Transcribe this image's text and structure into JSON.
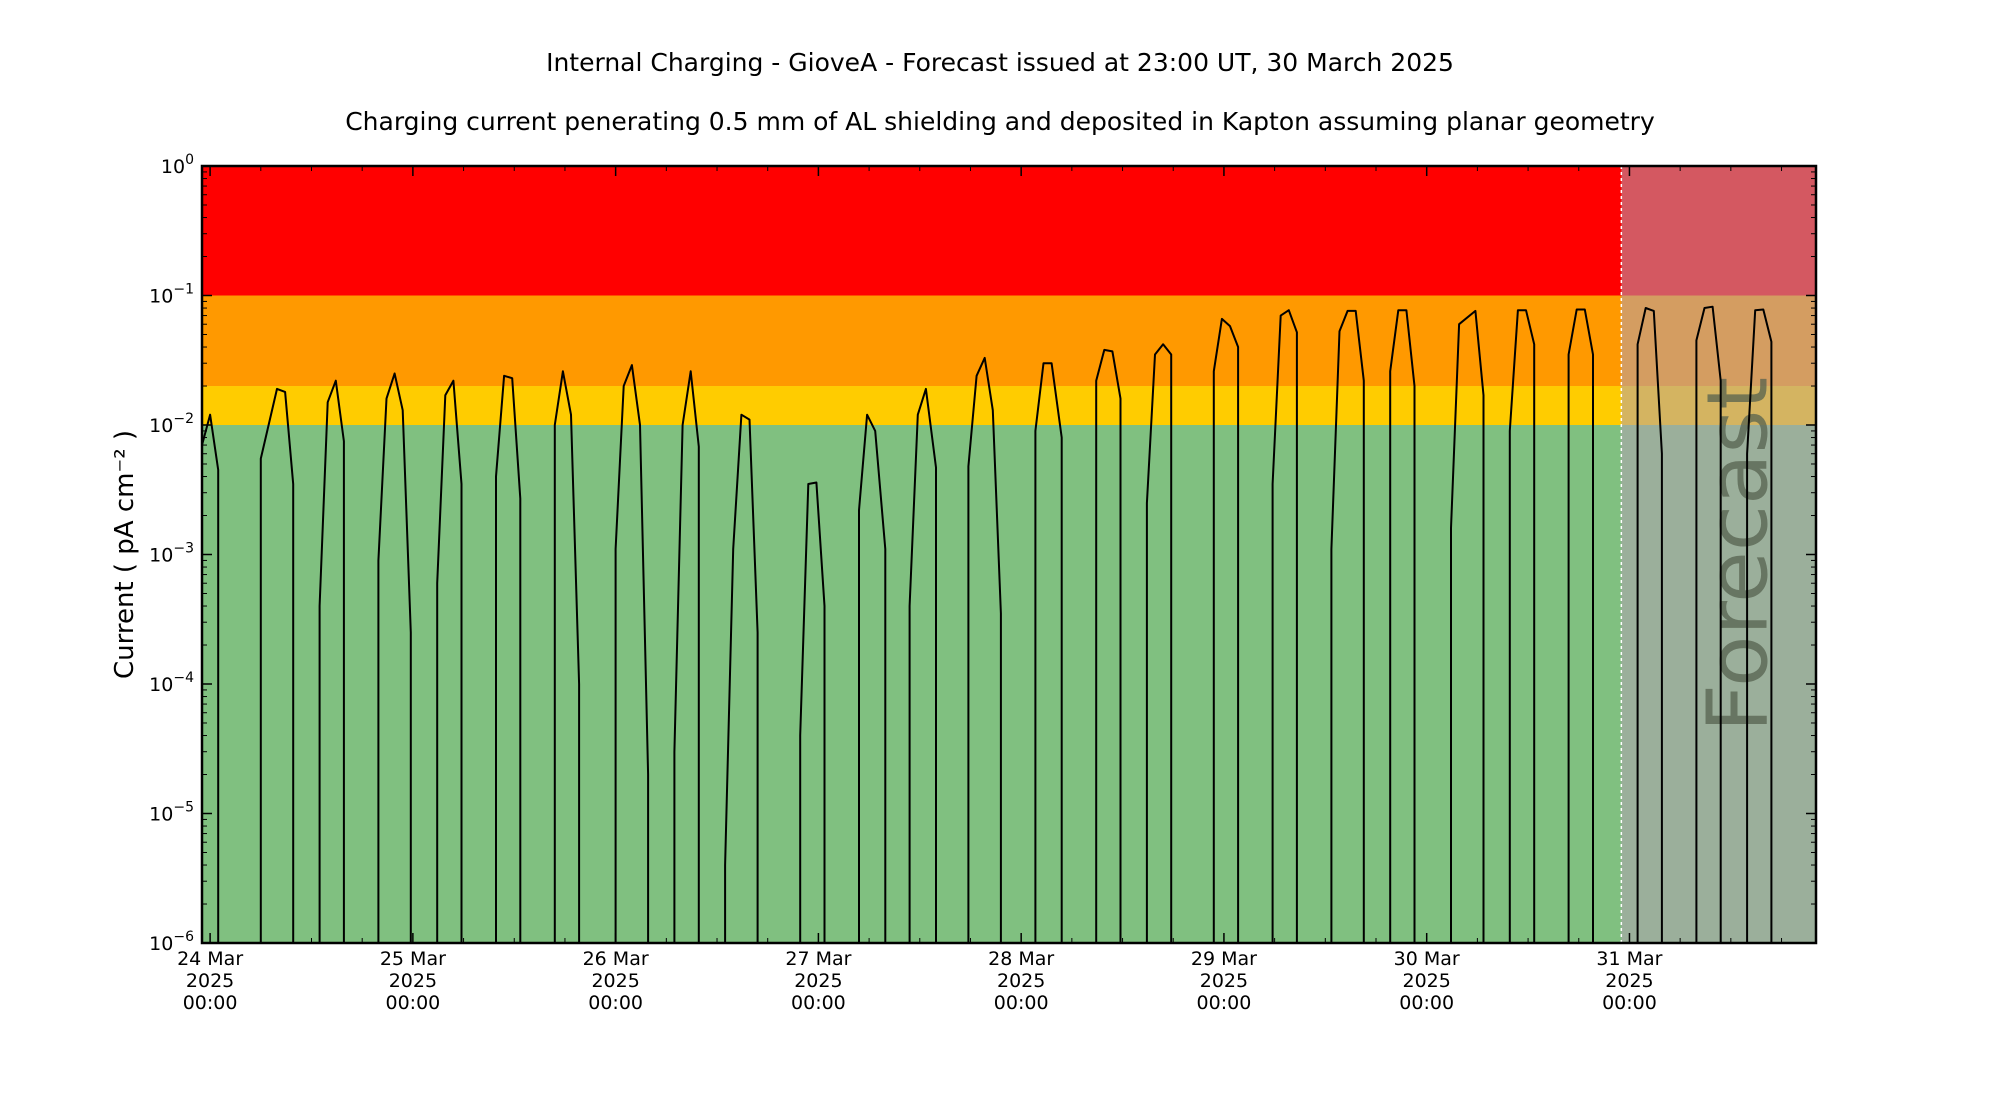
{
  "chart_data": {
    "type": "line",
    "title": "Internal Charging - GioveA - Forecast issued at 23:00 UT, 30 March 2025",
    "subtitle": "Charging current penerating 0.5 mm of AL shielding and deposited in Kapton assuming planar geometry",
    "ylabel": "Current ( pA cm⁻² )",
    "xlabel": "",
    "yscale": "log",
    "ylim": [
      1e-06,
      1
    ],
    "xlim_days": [
      -0.04,
      7.92
    ],
    "y_ticks": [
      {
        "value": 1e-06,
        "base": "10",
        "exp": "−6"
      },
      {
        "value": 1e-05,
        "base": "10",
        "exp": "−5"
      },
      {
        "value": 0.0001,
        "base": "10",
        "exp": "−4"
      },
      {
        "value": 0.001,
        "base": "10",
        "exp": "−3"
      },
      {
        "value": 0.01,
        "base": "10",
        "exp": "−2"
      },
      {
        "value": 0.1,
        "base": "10",
        "exp": "−1"
      },
      {
        "value": 1,
        "base": "10",
        "exp": "0"
      }
    ],
    "x_ticks": [
      {
        "day": 0,
        "lines": [
          "24 Mar",
          "2025",
          "00:00"
        ]
      },
      {
        "day": 1,
        "lines": [
          "25 Mar",
          "2025",
          "00:00"
        ]
      },
      {
        "day": 2,
        "lines": [
          "26 Mar",
          "2025",
          "00:00"
        ]
      },
      {
        "day": 3,
        "lines": [
          "27 Mar",
          "2025",
          "00:00"
        ]
      },
      {
        "day": 4,
        "lines": [
          "28 Mar",
          "2025",
          "00:00"
        ]
      },
      {
        "day": 5,
        "lines": [
          "29 Mar",
          "2025",
          "00:00"
        ]
      },
      {
        "day": 6,
        "lines": [
          "30 Mar",
          "2025",
          "00:00"
        ]
      },
      {
        "day": 7,
        "lines": [
          "31 Mar",
          "2025",
          "00:00"
        ]
      }
    ],
    "bands": [
      {
        "from": 1e-06,
        "to": 0.01,
        "color": "#80c080"
      },
      {
        "from": 0.01,
        "to": 0.02,
        "color": "#ffcc00"
      },
      {
        "from": 0.02,
        "to": 0.1,
        "color": "#ff9900"
      },
      {
        "from": 0.1,
        "to": 1,
        "color": "#ff0000"
      }
    ],
    "forecast": {
      "start_day": 6.96,
      "label": "Forecast",
      "overlay_color": "#b0a0b0"
    },
    "grid": false,
    "legend": "none",
    "series": [
      {
        "color": "#000000",
        "segments": [
          [
            [
              -0.04,
              0.007
            ],
            [
              0.0,
              0.012
            ],
            [
              0.04,
              0.0045
            ],
            [
              0.04,
              1e-06
            ]
          ],
          [
            [
              0.25,
              1e-06
            ],
            [
              0.25,
              0.0055
            ],
            [
              0.33,
              0.019
            ],
            [
              0.37,
              0.018
            ],
            [
              0.41,
              0.0035
            ],
            [
              0.41,
              1e-06
            ]
          ],
          [
            [
              0.54,
              1e-06
            ],
            [
              0.54,
              0.0004
            ],
            [
              0.58,
              0.015
            ],
            [
              0.62,
              0.022
            ],
            [
              0.66,
              0.0075
            ],
            [
              0.66,
              1e-06
            ]
          ],
          [
            [
              0.83,
              1e-06
            ],
            [
              0.83,
              0.0009
            ],
            [
              0.87,
              0.016
            ],
            [
              0.91,
              0.025
            ],
            [
              0.95,
              0.013
            ],
            [
              0.99,
              0.00025
            ],
            [
              0.99,
              1e-06
            ]
          ],
          [
            [
              1.12,
              1e-06
            ],
            [
              1.12,
              0.0006
            ],
            [
              1.16,
              0.017
            ],
            [
              1.2,
              0.022
            ],
            [
              1.24,
              0.0035
            ],
            [
              1.24,
              1e-06
            ]
          ],
          [
            [
              1.41,
              1e-06
            ],
            [
              1.41,
              0.004
            ],
            [
              1.45,
              0.024
            ],
            [
              1.49,
              0.023
            ],
            [
              1.53,
              0.0027
            ],
            [
              1.53,
              1e-06
            ]
          ],
          [
            [
              1.7,
              1e-06
            ],
            [
              1.7,
              0.01
            ],
            [
              1.74,
              0.026
            ],
            [
              1.78,
              0.012
            ],
            [
              1.82,
              0.0001
            ],
            [
              1.82,
              1e-06
            ]
          ],
          [
            [
              2.0,
              1e-06
            ],
            [
              2.0,
              0.0011
            ],
            [
              2.04,
              0.02
            ],
            [
              2.08,
              0.029
            ],
            [
              2.12,
              0.01
            ],
            [
              2.16,
              2e-05
            ],
            [
              2.16,
              1e-06
            ]
          ],
          [
            [
              2.29,
              1e-06
            ],
            [
              2.29,
              3e-05
            ],
            [
              2.33,
              0.01
            ],
            [
              2.37,
              0.026
            ],
            [
              2.41,
              0.0068
            ],
            [
              2.41,
              1e-06
            ]
          ],
          [
            [
              2.54,
              1e-06
            ],
            [
              2.54,
              4e-06
            ],
            [
              2.58,
              0.0011
            ],
            [
              2.62,
              0.012
            ],
            [
              2.66,
              0.011
            ],
            [
              2.7,
              0.00025
            ],
            [
              2.7,
              1e-06
            ]
          ],
          [
            [
              2.91,
              1e-06
            ],
            [
              2.91,
              4e-05
            ],
            [
              2.95,
              0.0035
            ],
            [
              2.99,
              0.0036
            ],
            [
              3.03,
              0.0004
            ],
            [
              3.03,
              1e-06
            ]
          ],
          [
            [
              3.2,
              1e-06
            ],
            [
              3.2,
              0.0022
            ],
            [
              3.24,
              0.012
            ],
            [
              3.28,
              0.009
            ],
            [
              3.33,
              0.0011
            ],
            [
              3.33,
              1e-06
            ]
          ],
          [
            [
              3.45,
              1e-06
            ],
            [
              3.45,
              0.0004
            ],
            [
              3.49,
              0.012
            ],
            [
              3.53,
              0.019
            ],
            [
              3.58,
              0.0047
            ],
            [
              3.58,
              1e-06
            ]
          ],
          [
            [
              3.74,
              1e-06
            ],
            [
              3.74,
              0.0048
            ],
            [
              3.78,
              0.024
            ],
            [
              3.82,
              0.033
            ],
            [
              3.86,
              0.013
            ],
            [
              3.9,
              0.00035
            ],
            [
              3.9,
              1e-06
            ]
          ],
          [
            [
              4.07,
              1e-06
            ],
            [
              4.07,
              0.009
            ],
            [
              4.11,
              0.03
            ],
            [
              4.15,
              0.03
            ],
            [
              4.2,
              0.008
            ],
            [
              4.2,
              1e-06
            ]
          ],
          [
            [
              4.37,
              1e-06
            ],
            [
              4.37,
              0.022
            ],
            [
              4.41,
              0.038
            ],
            [
              4.45,
              0.037
            ],
            [
              4.49,
              0.016
            ],
            [
              4.49,
              1e-06
            ]
          ],
          [
            [
              4.62,
              1e-06
            ],
            [
              4.62,
              0.0025
            ],
            [
              4.66,
              0.035
            ],
            [
              4.7,
              0.042
            ],
            [
              4.74,
              0.035
            ],
            [
              4.74,
              1e-06
            ]
          ],
          [
            [
              4.95,
              1e-06
            ],
            [
              4.95,
              0.026
            ],
            [
              4.99,
              0.066
            ],
            [
              5.03,
              0.058
            ],
            [
              5.07,
              0.04
            ],
            [
              5.07,
              1e-06
            ]
          ],
          [
            [
              5.24,
              1e-06
            ],
            [
              5.24,
              0.0035
            ],
            [
              5.28,
              0.07
            ],
            [
              5.32,
              0.077
            ],
            [
              5.36,
              0.052
            ],
            [
              5.36,
              1e-06
            ]
          ],
          [
            [
              5.53,
              1e-06
            ],
            [
              5.53,
              0.0011
            ],
            [
              5.57,
              0.053
            ],
            [
              5.61,
              0.076
            ],
            [
              5.65,
              0.076
            ],
            [
              5.69,
              0.022
            ],
            [
              5.69,
              1e-06
            ]
          ],
          [
            [
              5.82,
              1e-06
            ],
            [
              5.82,
              0.026
            ],
            [
              5.86,
              0.077
            ],
            [
              5.9,
              0.077
            ],
            [
              5.94,
              0.02
            ],
            [
              5.94,
              1e-06
            ]
          ],
          [
            [
              6.12,
              1e-06
            ],
            [
              6.12,
              0.0016
            ],
            [
              6.16,
              0.06
            ],
            [
              6.24,
              0.076
            ],
            [
              6.28,
              0.017
            ],
            [
              6.28,
              1e-06
            ]
          ],
          [
            [
              6.41,
              1e-06
            ],
            [
              6.41,
              0.009
            ],
            [
              6.45,
              0.077
            ],
            [
              6.49,
              0.077
            ],
            [
              6.53,
              0.042
            ],
            [
              6.53,
              1e-06
            ]
          ],
          [
            [
              6.7,
              1e-06
            ],
            [
              6.7,
              0.035
            ],
            [
              6.74,
              0.078
            ],
            [
              6.78,
              0.078
            ],
            [
              6.82,
              0.035
            ],
            [
              6.82,
              1e-06
            ]
          ],
          [
            [
              7.04,
              1e-06
            ],
            [
              7.04,
              0.042
            ],
            [
              7.08,
              0.08
            ],
            [
              7.12,
              0.076
            ],
            [
              7.16,
              0.006
            ],
            [
              7.16,
              1e-06
            ]
          ],
          [
            [
              7.33,
              1e-06
            ],
            [
              7.33,
              0.045
            ],
            [
              7.37,
              0.08
            ],
            [
              7.41,
              0.082
            ],
            [
              7.45,
              0.022
            ],
            [
              7.45,
              1e-06
            ]
          ],
          [
            [
              7.58,
              1e-06
            ],
            [
              7.58,
              0.006
            ],
            [
              7.62,
              0.077
            ],
            [
              7.66,
              0.078
            ],
            [
              7.7,
              0.044
            ],
            [
              7.7,
              1e-06
            ]
          ]
        ]
      }
    ]
  }
}
